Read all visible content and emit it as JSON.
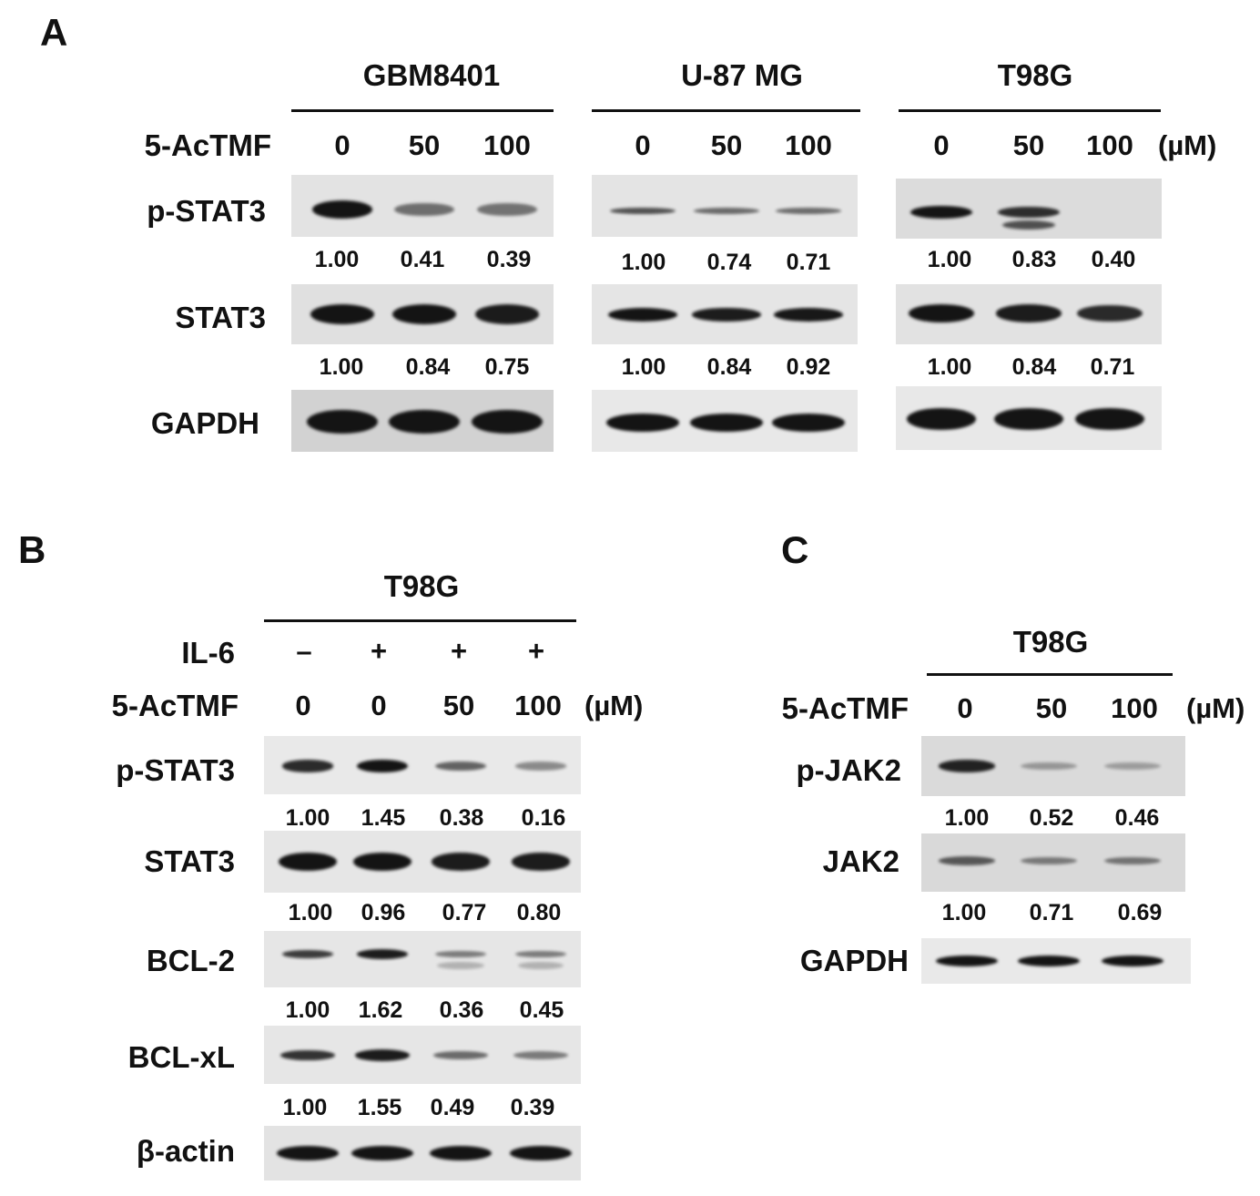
{
  "colors": {
    "ink": "#111111",
    "band": "#141414"
  },
  "panelA": {
    "letter": "A",
    "treatment_label": "5-AcTMF",
    "unit": "(µM)",
    "groups": [
      {
        "cell_line": "GBM8401",
        "doses": [
          "0",
          "50",
          "100"
        ]
      },
      {
        "cell_line": "U-87 MG",
        "doses": [
          "0",
          "50",
          "100"
        ]
      },
      {
        "cell_line": "T98G",
        "doses": [
          "0",
          "50",
          "100"
        ]
      }
    ],
    "rows": [
      {
        "label": "p-STAT3",
        "band_intensity": [
          [
            1.0,
            0.41,
            0.39
          ],
          [
            1.0,
            0.74,
            0.71
          ],
          [
            1.0,
            0.83,
            0.4
          ]
        ]
      },
      {
        "label": "STAT3",
        "band_intensity": [
          [
            1.0,
            0.84,
            0.75
          ],
          [
            1.0,
            0.84,
            0.92
          ],
          [
            1.0,
            0.84,
            0.71
          ]
        ]
      },
      {
        "label": "GAPDH"
      }
    ],
    "quant_rows": [
      [
        [
          "1.00",
          "0.41",
          "0.39"
        ],
        [
          "1.00",
          "0.74",
          "0.71"
        ],
        [
          "1.00",
          "0.83",
          "0.40"
        ]
      ],
      [
        [
          "1.00",
          "0.84",
          "0.75"
        ],
        [
          "1.00",
          "0.84",
          "0.92"
        ],
        [
          "1.00",
          "0.84",
          "0.71"
        ]
      ]
    ]
  },
  "panelB": {
    "letter": "B",
    "cell_line": "T98G",
    "il6_label": "IL-6",
    "il6": [
      "–",
      "+",
      "+",
      "+"
    ],
    "treatment_label": "5-AcTMF",
    "doses": [
      "0",
      "0",
      "50",
      "100"
    ],
    "unit": "(µM)",
    "rows": [
      {
        "label": "p-STAT3",
        "quant": [
          "1.00",
          "1.45",
          "0.38",
          "0.16"
        ]
      },
      {
        "label": "STAT3",
        "quant": [
          "1.00",
          "0.96",
          "0.77",
          "0.80"
        ]
      },
      {
        "label": "BCL-2",
        "quant": [
          "1.00",
          "1.62",
          "0.36",
          "0.45"
        ]
      },
      {
        "label": "BCL-xL",
        "quant": [
          "1.00",
          "1.55",
          "0.49",
          "0.39"
        ]
      },
      {
        "label": "β-actin"
      }
    ]
  },
  "panelC": {
    "letter": "C",
    "cell_line": "T98G",
    "treatment_label": "5-AcTMF",
    "doses": [
      "0",
      "50",
      "100"
    ],
    "unit": "(µM)",
    "rows": [
      {
        "label": "p-JAK2",
        "quant": [
          "1.00",
          "0.52",
          "0.46"
        ]
      },
      {
        "label": "JAK2",
        "quant": [
          "1.00",
          "0.71",
          "0.69"
        ]
      },
      {
        "label": "GAPDH"
      }
    ]
  }
}
